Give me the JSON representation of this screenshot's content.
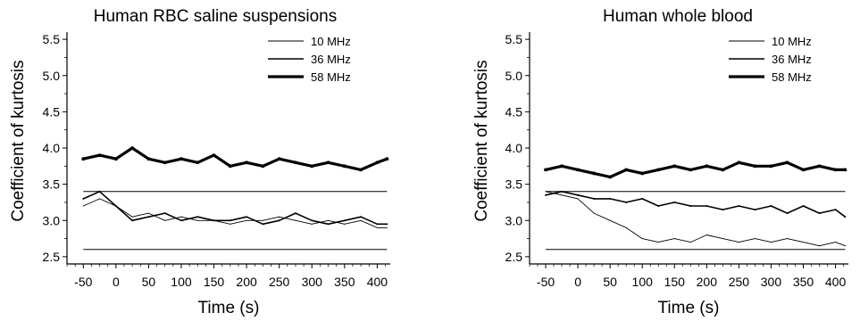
{
  "chart_data": [
    {
      "type": "line",
      "title": "Human RBC saline suspensions",
      "xlabel": "Time (s)",
      "ylabel": "Coefficient of kurtosis",
      "xlim": [
        -75,
        420
      ],
      "ylim": [
        2.4,
        5.6
      ],
      "xticks": [
        -50,
        0,
        50,
        100,
        150,
        200,
        250,
        300,
        350,
        400
      ],
      "xtick_labels": [
        "-50",
        "0",
        "50",
        "100",
        "150",
        "200",
        "250",
        "300",
        "350",
        "400"
      ],
      "yticks": [
        2.5,
        3.0,
        3.5,
        4.0,
        4.5,
        5.0,
        5.5
      ],
      "ytick_labels": [
        "2.5",
        "3.0",
        "3.5",
        "4.0",
        "4.5",
        "5.0",
        "5.5"
      ],
      "grid": false,
      "legend_position": "top-right",
      "x": [
        -50,
        -25,
        0,
        25,
        50,
        75,
        100,
        125,
        150,
        175,
        200,
        225,
        250,
        275,
        300,
        325,
        350,
        375,
        400,
        415
      ],
      "reference_lines": [
        3.4,
        2.6
      ],
      "series": [
        {
          "name": "10 MHz",
          "weight": "thin",
          "values": [
            3.2,
            3.3,
            3.2,
            3.05,
            3.1,
            3.0,
            3.05,
            3.0,
            3.0,
            2.95,
            3.0,
            3.0,
            3.05,
            3.0,
            2.95,
            3.0,
            2.95,
            3.0,
            2.9,
            2.9
          ]
        },
        {
          "name": "36 MHz",
          "weight": "medium",
          "values": [
            3.3,
            3.4,
            3.2,
            3.0,
            3.05,
            3.1,
            3.0,
            3.05,
            3.0,
            3.0,
            3.05,
            2.95,
            3.0,
            3.1,
            3.0,
            2.95,
            3.0,
            3.05,
            2.95,
            2.95
          ]
        },
        {
          "name": "58 MHz",
          "weight": "thick",
          "values": [
            3.85,
            3.9,
            3.85,
            4.0,
            3.85,
            3.8,
            3.85,
            3.8,
            3.9,
            3.75,
            3.8,
            3.75,
            3.85,
            3.8,
            3.75,
            3.8,
            3.75,
            3.7,
            3.8,
            3.85
          ]
        }
      ]
    },
    {
      "type": "line",
      "title": "Human whole blood",
      "xlabel": "Time (s)",
      "ylabel": "Coefficient of kurtosis",
      "xlim": [
        -75,
        420
      ],
      "ylim": [
        2.4,
        5.6
      ],
      "xticks": [
        -50,
        0,
        50,
        100,
        150,
        200,
        250,
        300,
        350,
        400
      ],
      "xtick_labels": [
        "-50",
        "0",
        "50",
        "100",
        "150",
        "200",
        "250",
        "300",
        "350",
        "400"
      ],
      "yticks": [
        2.5,
        3.0,
        3.5,
        4.0,
        4.5,
        5.0,
        5.5
      ],
      "ytick_labels": [
        "2.5",
        "3.0",
        "3.5",
        "4.0",
        "4.5",
        "5.0",
        "5.5"
      ],
      "grid": false,
      "legend_position": "top-right",
      "x": [
        -50,
        -25,
        0,
        25,
        50,
        75,
        100,
        125,
        150,
        175,
        200,
        225,
        250,
        275,
        300,
        325,
        350,
        375,
        400,
        415
      ],
      "reference_lines": [
        3.4,
        2.6
      ],
      "series": [
        {
          "name": "10 MHz",
          "weight": "thin",
          "values": [
            3.4,
            3.35,
            3.3,
            3.1,
            3.0,
            2.9,
            2.75,
            2.7,
            2.75,
            2.7,
            2.8,
            2.75,
            2.7,
            2.75,
            2.7,
            2.75,
            2.7,
            2.65,
            2.7,
            2.65
          ]
        },
        {
          "name": "36 MHz",
          "weight": "medium",
          "values": [
            3.35,
            3.4,
            3.35,
            3.3,
            3.3,
            3.25,
            3.3,
            3.2,
            3.25,
            3.2,
            3.2,
            3.15,
            3.2,
            3.15,
            3.2,
            3.1,
            3.2,
            3.1,
            3.15,
            3.05
          ]
        },
        {
          "name": "58 MHz",
          "weight": "thick",
          "values": [
            3.7,
            3.75,
            3.7,
            3.65,
            3.6,
            3.7,
            3.65,
            3.7,
            3.75,
            3.7,
            3.75,
            3.7,
            3.8,
            3.75,
            3.75,
            3.8,
            3.7,
            3.75,
            3.7,
            3.7
          ]
        }
      ]
    }
  ]
}
